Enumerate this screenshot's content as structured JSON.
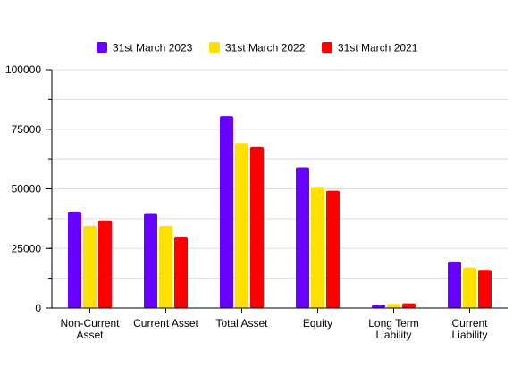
{
  "chart_data": {
    "type": "bar",
    "categories": [
      [
        "Non-Current",
        "Asset"
      ],
      [
        "Current Asset"
      ],
      [
        "Total Asset"
      ],
      [
        "Equity"
      ],
      [
        "Long Term",
        "Liability"
      ],
      [
        "Current",
        "Liability"
      ]
    ],
    "series": [
      {
        "name": "31st March 2023",
        "color": "#6600ff",
        "values": [
          40500,
          39500,
          80500,
          59000,
          1500,
          19500
        ]
      },
      {
        "name": "31st March 2022",
        "color": "#ffe000",
        "values": [
          34500,
          34500,
          69200,
          50800,
          1800,
          17000
        ]
      },
      {
        "name": "31st March 2021",
        "color": "#ff0000",
        "values": [
          36800,
          30000,
          67500,
          49200,
          2000,
          16000
        ]
      }
    ],
    "ylim": [
      0,
      100000
    ],
    "yticks": [
      0,
      25000,
      50000,
      75000,
      100000
    ],
    "ytick_labels": [
      "0",
      "25000",
      "50000",
      "75000",
      "100000"
    ],
    "grid": true,
    "legend_position": "top-center"
  }
}
